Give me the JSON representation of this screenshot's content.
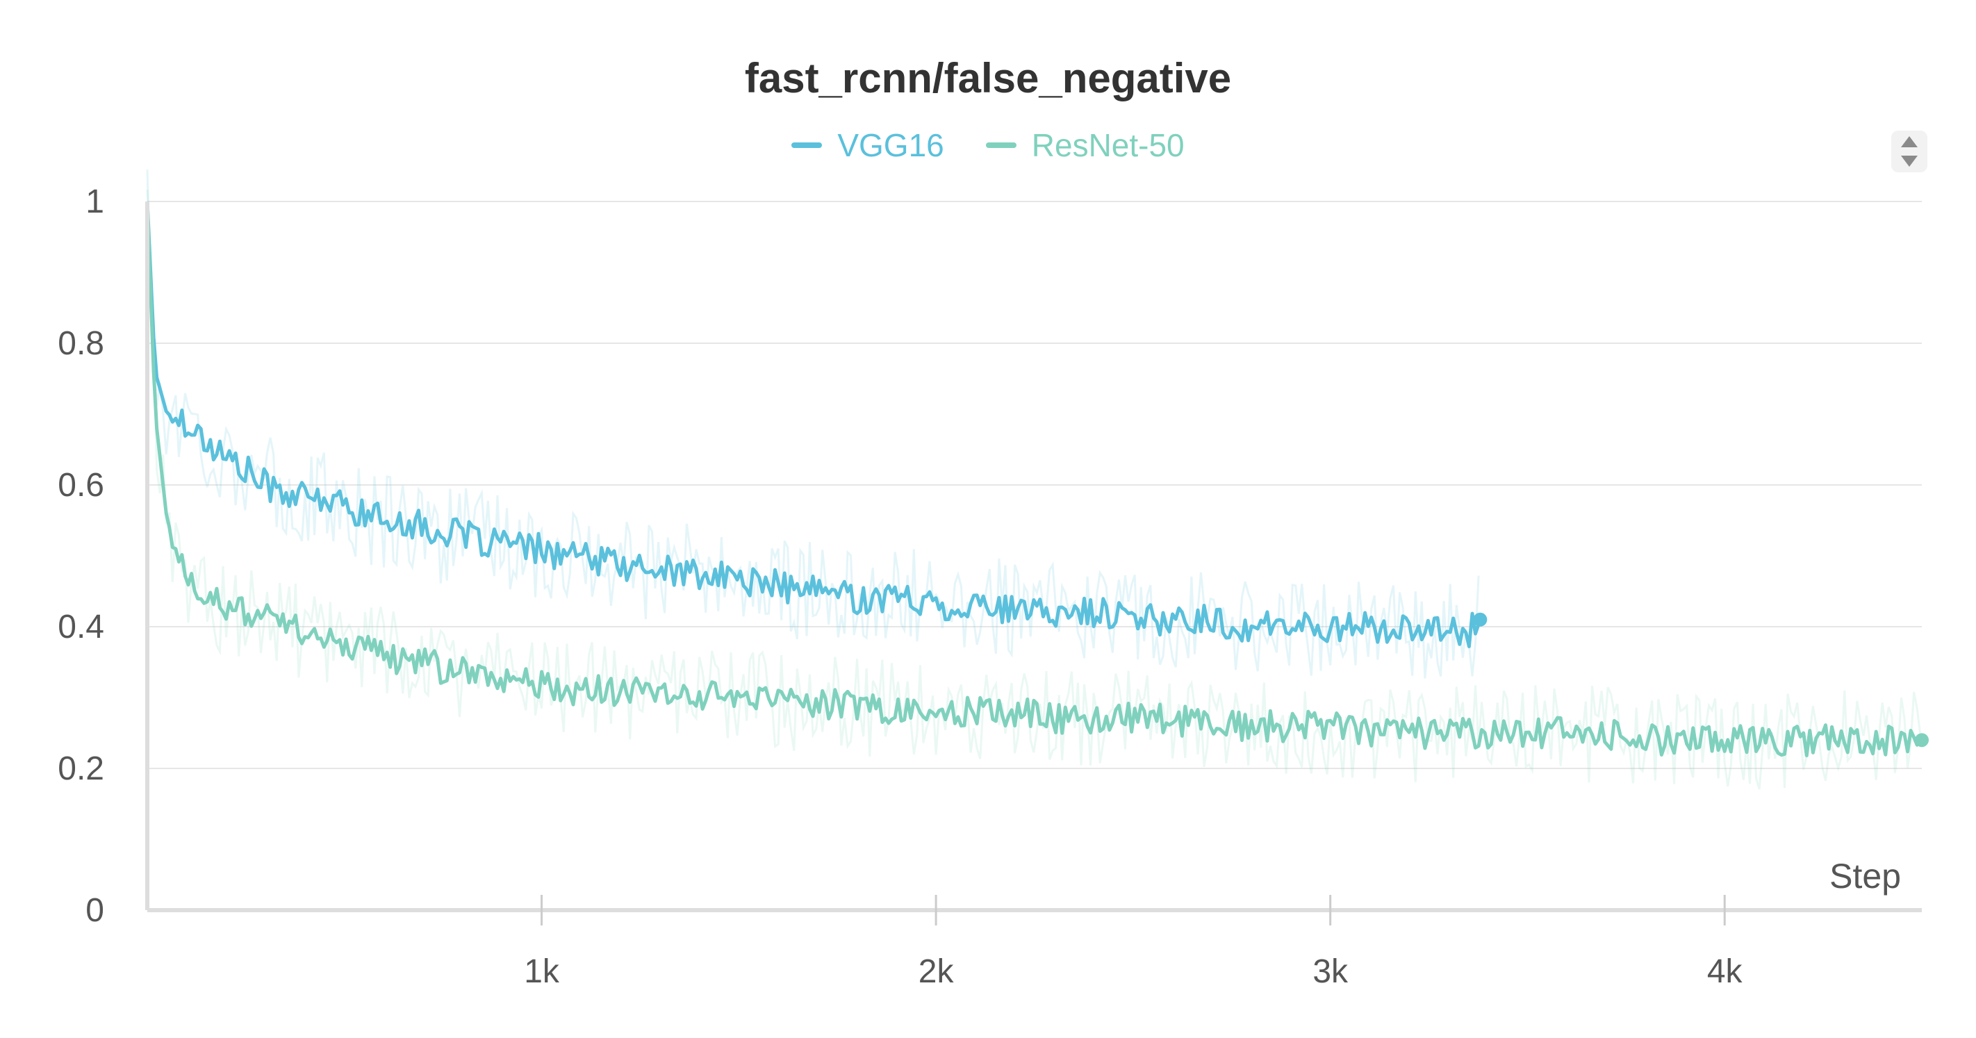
{
  "chart_data": {
    "type": "line",
    "title": "fast_rcnn/false_negative",
    "xlabel": "Step",
    "ylabel": "",
    "xlim": [
      0,
      4500
    ],
    "ylim": [
      0,
      1
    ],
    "yticks": [
      {
        "value": 0,
        "label": "0"
      },
      {
        "value": 0.2,
        "label": "0.2"
      },
      {
        "value": 0.4,
        "label": "0.4"
      },
      {
        "value": 0.6,
        "label": "0.6"
      },
      {
        "value": 0.8,
        "label": "0.8"
      },
      {
        "value": 1,
        "label": "1"
      }
    ],
    "xticks": [
      {
        "value": 1000,
        "label": "1k"
      },
      {
        "value": 2000,
        "label": "2k"
      },
      {
        "value": 3000,
        "label": "3k"
      },
      {
        "value": 4000,
        "label": "4k"
      }
    ],
    "grid": true,
    "legend_position": "top-center",
    "series": [
      {
        "name": "VGG16",
        "color": "#5ac0dc",
        "x": [
          0,
          20,
          50,
          100,
          150,
          200,
          250,
          300,
          350,
          400,
          450,
          500,
          550,
          600,
          650,
          700,
          750,
          800,
          850,
          900,
          950,
          1000,
          1050,
          1100,
          1150,
          1200,
          1250,
          1300,
          1350,
          1400,
          1450,
          1500,
          1550,
          1600,
          1650,
          1700,
          1750,
          1800,
          1850,
          1900,
          1950,
          2000,
          2050,
          2100,
          2150,
          2200,
          2250,
          2300,
          2350,
          2400,
          2450,
          2500,
          2550,
          2600,
          2650,
          2700,
          2750,
          2800,
          2850,
          2900,
          2950,
          3000,
          3050,
          3100,
          3150,
          3200,
          3250,
          3300,
          3350,
          3380
        ],
        "y": [
          1.0,
          0.76,
          0.7,
          0.69,
          0.66,
          0.64,
          0.62,
          0.6,
          0.59,
          0.58,
          0.58,
          0.57,
          0.56,
          0.55,
          0.55,
          0.54,
          0.53,
          0.53,
          0.52,
          0.52,
          0.51,
          0.51,
          0.5,
          0.5,
          0.49,
          0.49,
          0.48,
          0.48,
          0.48,
          0.47,
          0.47,
          0.47,
          0.46,
          0.46,
          0.45,
          0.45,
          0.45,
          0.44,
          0.44,
          0.44,
          0.44,
          0.43,
          0.43,
          0.43,
          0.43,
          0.42,
          0.42,
          0.42,
          0.42,
          0.42,
          0.42,
          0.41,
          0.41,
          0.41,
          0.41,
          0.41,
          0.4,
          0.4,
          0.4,
          0.4,
          0.4,
          0.4,
          0.4,
          0.4,
          0.4,
          0.39,
          0.39,
          0.4,
          0.39,
          0.41
        ]
      },
      {
        "name": "ResNet-50",
        "color": "#7fd1bd",
        "x": [
          0,
          20,
          50,
          80,
          100,
          150,
          200,
          250,
          300,
          350,
          400,
          450,
          500,
          550,
          600,
          650,
          700,
          750,
          800,
          850,
          900,
          950,
          1000,
          1100,
          1200,
          1300,
          1400,
          1500,
          1600,
          1700,
          1800,
          1900,
          2000,
          2100,
          2200,
          2300,
          2400,
          2500,
          2600,
          2700,
          2800,
          2900,
          3000,
          3100,
          3200,
          3300,
          3400,
          3500,
          3600,
          3700,
          3800,
          3900,
          4000,
          4100,
          4200,
          4300,
          4400,
          4500
        ],
        "y": [
          1.0,
          0.7,
          0.55,
          0.5,
          0.47,
          0.44,
          0.43,
          0.42,
          0.41,
          0.4,
          0.39,
          0.38,
          0.37,
          0.37,
          0.36,
          0.35,
          0.35,
          0.34,
          0.34,
          0.33,
          0.33,
          0.32,
          0.32,
          0.31,
          0.31,
          0.3,
          0.3,
          0.3,
          0.29,
          0.29,
          0.29,
          0.28,
          0.28,
          0.28,
          0.28,
          0.27,
          0.27,
          0.27,
          0.27,
          0.26,
          0.26,
          0.26,
          0.26,
          0.25,
          0.25,
          0.25,
          0.25,
          0.25,
          0.25,
          0.25,
          0.24,
          0.24,
          0.24,
          0.24,
          0.24,
          0.24,
          0.24,
          0.24
        ]
      }
    ]
  }
}
